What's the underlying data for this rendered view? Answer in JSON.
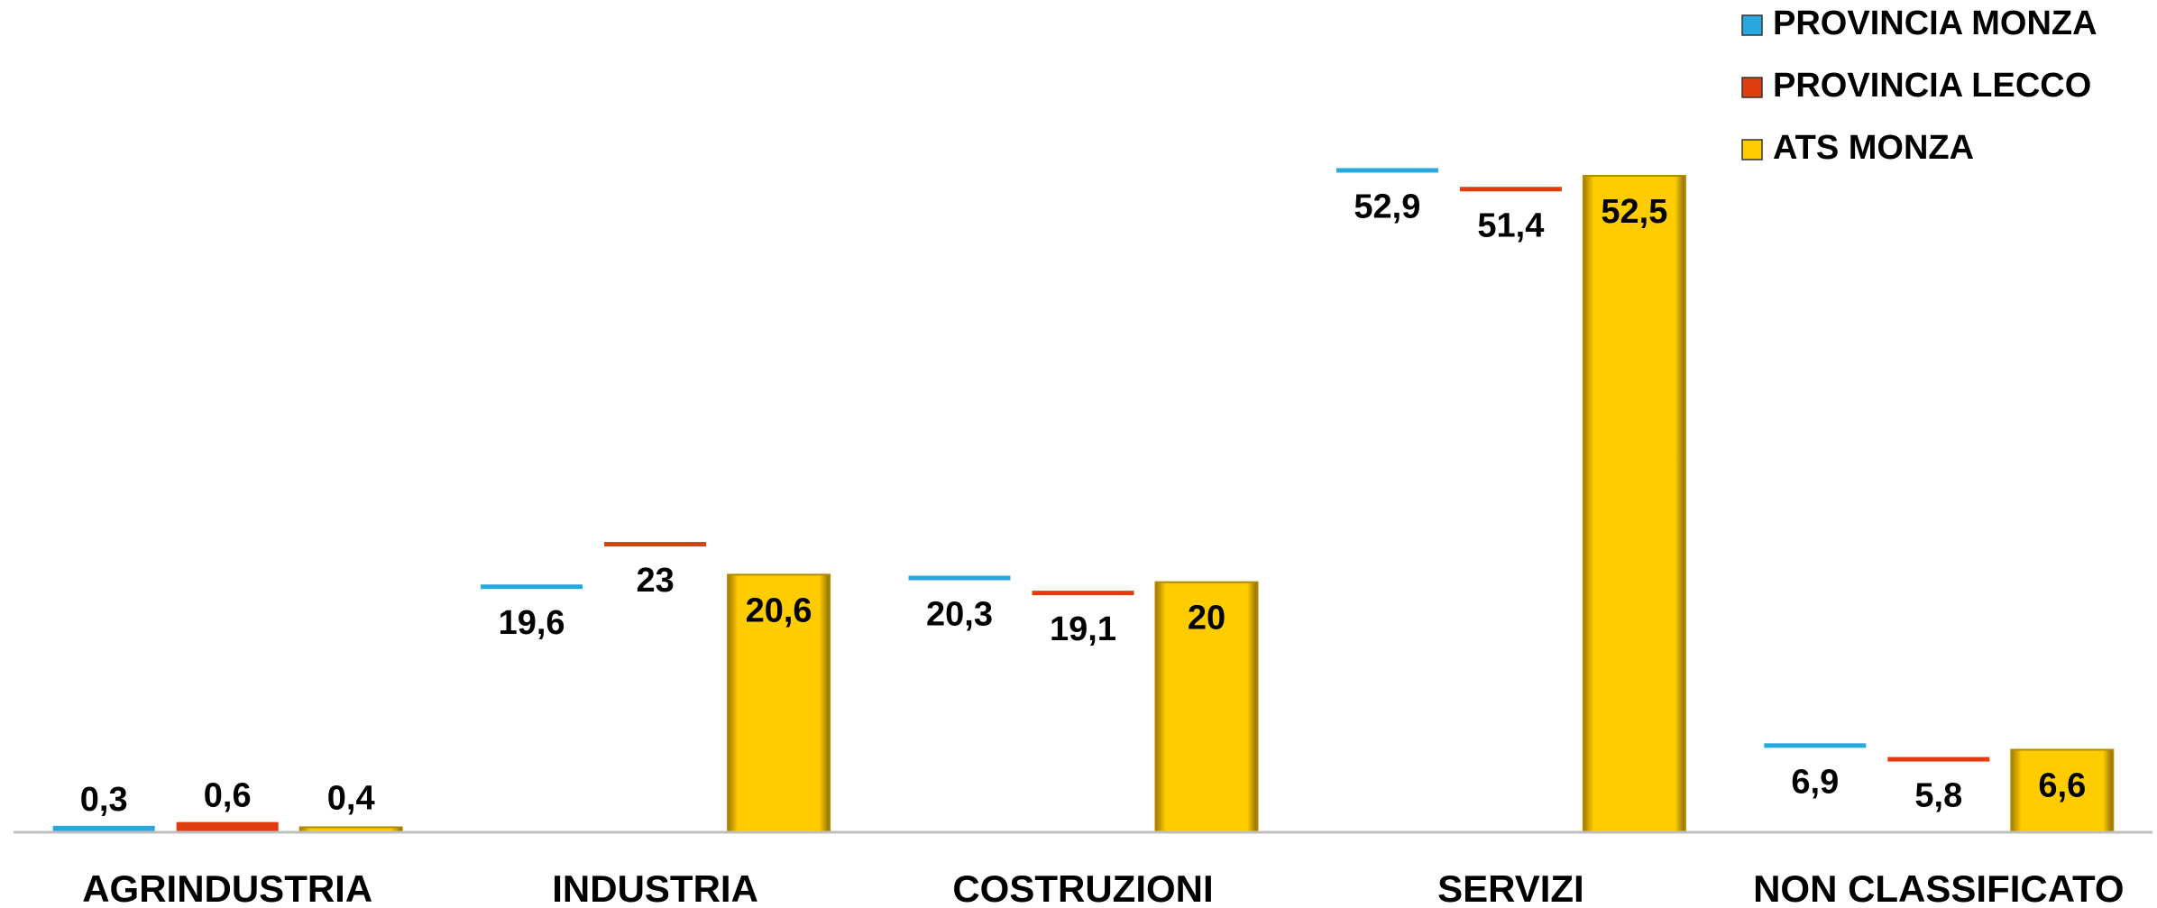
{
  "chart_data": {
    "type": "bar",
    "categories": [
      "AGRINDUSTRIA",
      "INDUSTRIA",
      "COSTRUZIONI",
      "SERVIZI",
      "NON CLASSIFICATO"
    ],
    "series": [
      {
        "name": "PROVINCIA MONZA",
        "color": "#29a8e0",
        "values": [
          0.3,
          19.6,
          20.3,
          52.9,
          6.9
        ],
        "value_labels": [
          "0,3",
          "19,6",
          "20,3",
          "52,9",
          "6,9"
        ]
      },
      {
        "name": "PROVINCIA LECCO",
        "color": "#e03c10",
        "values": [
          0.6,
          23,
          19.1,
          51.4,
          5.8
        ],
        "value_labels": [
          "0,6",
          "23",
          "19,1",
          "51,4",
          "5,8"
        ]
      },
      {
        "name": "ATS MONZA",
        "color": "#ffcc00",
        "values": [
          0.4,
          20.6,
          20,
          52.5,
          6.6
        ],
        "value_labels": [
          "0,4",
          "20,6",
          "20",
          "52,5",
          "6,6"
        ]
      }
    ],
    "ylim": [
      0,
      60
    ]
  }
}
